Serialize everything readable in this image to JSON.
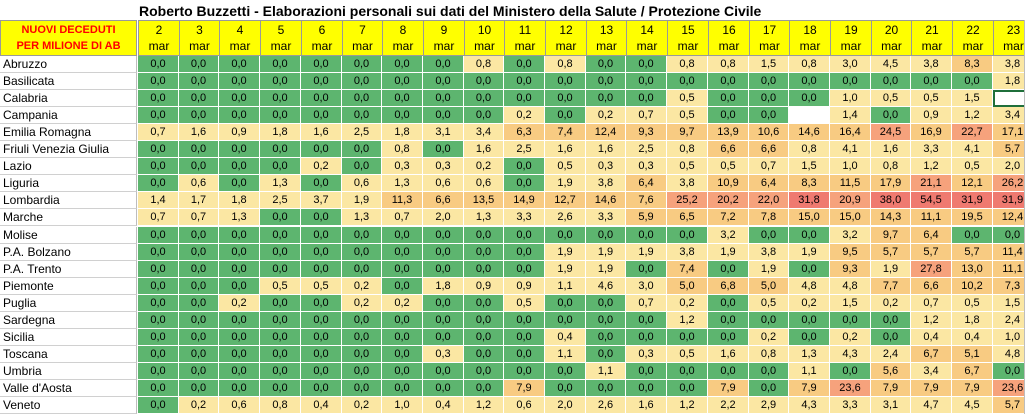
{
  "title": "Roberto Buzzetti - Elaborazioni personali sui dati del Ministero della Salute / Protezione Civile",
  "header_label": [
    "NUOVI DECEDUTI",
    "PER MILIONE DI AB"
  ],
  "month_label": "mar",
  "days": [
    "2",
    "3",
    "4",
    "5",
    "6",
    "7",
    "8",
    "9",
    "10",
    "11",
    "12",
    "13",
    "14",
    "15",
    "16",
    "17",
    "18",
    "19",
    "20",
    "21",
    "22",
    "23"
  ],
  "colors": {
    "header_bg": "#ffff00",
    "header_label_text": "#ff0000",
    "green": "#5db56f",
    "pale": "#fbe7a3",
    "orange": "#f8cb82",
    "salmon": "#f6a27c",
    "red": "#ef7a70",
    "empty": "#ffffff"
  },
  "rows": [
    {
      "region": "Abruzzo",
      "values": [
        "0,0",
        "0,0",
        "0,0",
        "0,0",
        "0,0",
        "0,0",
        "0,0",
        "0,0",
        "0,8",
        "0,0",
        "0,8",
        "0,0",
        "0,0",
        "0,8",
        "0,8",
        "1,5",
        "0,8",
        "3,0",
        "4,5",
        "3,8",
        "8,3",
        "3,8"
      ]
    },
    {
      "region": "Basilicata",
      "values": [
        "0,0",
        "0,0",
        "0,0",
        "0,0",
        "0,0",
        "0,0",
        "0,0",
        "0,0",
        "0,0",
        "0,0",
        "0,0",
        "0,0",
        "0,0",
        "0,0",
        "0,0",
        "0,0",
        "0,0",
        "0,0",
        "0,0",
        "0,0",
        "0,0",
        "1,8"
      ]
    },
    {
      "region": "Calabria",
      "values": [
        "0,0",
        "0,0",
        "0,0",
        "0,0",
        "0,0",
        "0,0",
        "0,0",
        "0,0",
        "0,0",
        "0,0",
        "0,0",
        "0,0",
        "0,0",
        "0,5",
        "0,0",
        "0,0",
        "0,0",
        "1,0",
        "0,5",
        "0,5",
        "1,5",
        ""
      ]
    },
    {
      "region": "Campania",
      "values": [
        "0,0",
        "0,0",
        "0,0",
        "0,0",
        "0,0",
        "0,0",
        "0,0",
        "0,0",
        "0,0",
        "0,2",
        "0,0",
        "0,2",
        "0,7",
        "0,5",
        "0,0",
        "0,0",
        "",
        "1,4",
        "0,0",
        "0,9",
        "1,2",
        "3,4"
      ]
    },
    {
      "region": "Emilia Romagna",
      "values": [
        "0,7",
        "1,6",
        "0,9",
        "1,8",
        "1,6",
        "2,5",
        "1,8",
        "3,1",
        "3,4",
        "6,3",
        "7,4",
        "12,4",
        "9,3",
        "9,7",
        "13,9",
        "10,6",
        "14,6",
        "16,4",
        "24,5",
        "16,9",
        "22,7",
        "17,1"
      ]
    },
    {
      "region": "Friuli Venezia Giulia",
      "values": [
        "0,0",
        "0,0",
        "0,0",
        "0,0",
        "0,0",
        "0,0",
        "0,8",
        "0,0",
        "1,6",
        "2,5",
        "1,6",
        "1,6",
        "2,5",
        "0,8",
        "6,6",
        "6,6",
        "0,8",
        "4,1",
        "1,6",
        "3,3",
        "4,1",
        "5,7"
      ]
    },
    {
      "region": "Lazio",
      "values": [
        "0,0",
        "0,0",
        "0,0",
        "0,0",
        "0,2",
        "0,0",
        "0,3",
        "0,3",
        "0,2",
        "0,0",
        "0,5",
        "0,3",
        "0,3",
        "0,5",
        "0,5",
        "0,7",
        "1,5",
        "1,0",
        "0,8",
        "1,2",
        "0,5",
        "2,0"
      ]
    },
    {
      "region": "Liguria",
      "values": [
        "0,0",
        "0,6",
        "0,0",
        "1,3",
        "0,0",
        "0,6",
        "1,3",
        "0,6",
        "0,6",
        "0,0",
        "1,9",
        "3,8",
        "6,4",
        "3,8",
        "10,9",
        "6,4",
        "8,3",
        "11,5",
        "17,9",
        "21,1",
        "12,1",
        "26,2"
      ]
    },
    {
      "region": "Lombardia",
      "values": [
        "1,4",
        "1,7",
        "1,8",
        "2,5",
        "3,7",
        "1,9",
        "11,3",
        "6,6",
        "13,5",
        "14,9",
        "12,7",
        "14,6",
        "7,6",
        "25,2",
        "20,2",
        "22,0",
        "31,8",
        "20,9",
        "38,0",
        "54,5",
        "31,9",
        "31,9"
      ]
    },
    {
      "region": "Marche",
      "values": [
        "0,7",
        "0,7",
        "1,3",
        "0,0",
        "0,0",
        "1,3",
        "0,7",
        "2,0",
        "1,3",
        "3,3",
        "2,6",
        "3,3",
        "5,9",
        "6,5",
        "7,2",
        "7,8",
        "15,0",
        "15,0",
        "14,3",
        "11,1",
        "19,5",
        "12,4"
      ]
    },
    {
      "region": "Molise",
      "values": [
        "0,0",
        "0,0",
        "0,0",
        "0,0",
        "0,0",
        "0,0",
        "0,0",
        "0,0",
        "0,0",
        "0,0",
        "0,0",
        "0,0",
        "0,0",
        "0,0",
        "3,2",
        "0,0",
        "0,0",
        "3,2",
        "9,7",
        "6,4",
        "0,0",
        "0,0"
      ]
    },
    {
      "region": "P.A. Bolzano",
      "values": [
        "0,0",
        "0,0",
        "0,0",
        "0,0",
        "0,0",
        "0,0",
        "0,0",
        "0,0",
        "0,0",
        "0,0",
        "1,9",
        "1,9",
        "1,9",
        "3,8",
        "1,9",
        "3,8",
        "1,9",
        "9,5",
        "5,7",
        "5,7",
        "5,7",
        "11,4"
      ]
    },
    {
      "region": "P.A. Trento",
      "values": [
        "0,0",
        "0,0",
        "0,0",
        "0,0",
        "0,0",
        "0,0",
        "0,0",
        "0,0",
        "0,0",
        "0,0",
        "1,9",
        "1,9",
        "0,0",
        "7,4",
        "0,0",
        "1,9",
        "0,0",
        "9,3",
        "1,9",
        "27,8",
        "13,0",
        "11,1"
      ]
    },
    {
      "region": "Piemonte",
      "values": [
        "0,0",
        "0,0",
        "0,0",
        "0,5",
        "0,5",
        "0,2",
        "0,0",
        "1,8",
        "0,9",
        "0,9",
        "1,1",
        "4,6",
        "3,0",
        "5,0",
        "6,8",
        "5,0",
        "4,8",
        "4,8",
        "7,7",
        "6,6",
        "10,2",
        "7,3"
      ]
    },
    {
      "region": "Puglia",
      "values": [
        "0,0",
        "0,0",
        "0,2",
        "0,0",
        "0,0",
        "0,2",
        "0,2",
        "0,0",
        "0,0",
        "0,5",
        "0,0",
        "0,0",
        "0,7",
        "0,2",
        "0,0",
        "0,5",
        "0,2",
        "1,5",
        "0,2",
        "0,7",
        "0,5",
        "1,5"
      ]
    },
    {
      "region": "Sardegna",
      "values": [
        "0,0",
        "0,0",
        "0,0",
        "0,0",
        "0,0",
        "0,0",
        "0,0",
        "0,0",
        "0,0",
        "0,0",
        "0,0",
        "0,0",
        "0,0",
        "1,2",
        "0,0",
        "0,0",
        "0,0",
        "0,0",
        "0,0",
        "1,2",
        "1,8",
        "2,4"
      ]
    },
    {
      "region": "Sicilia",
      "values": [
        "0,0",
        "0,0",
        "0,0",
        "0,0",
        "0,0",
        "0,0",
        "0,0",
        "0,0",
        "0,0",
        "0,0",
        "0,4",
        "0,0",
        "0,0",
        "0,0",
        "0,0",
        "0,2",
        "0,0",
        "0,2",
        "0,0",
        "0,4",
        "0,4",
        "1,0"
      ]
    },
    {
      "region": "Toscana",
      "values": [
        "0,0",
        "0,0",
        "0,0",
        "0,0",
        "0,0",
        "0,0",
        "0,0",
        "0,3",
        "0,0",
        "0,0",
        "1,1",
        "0,0",
        "0,3",
        "0,5",
        "1,6",
        "0,8",
        "1,3",
        "4,3",
        "2,4",
        "6,7",
        "5,1",
        "4,8"
      ]
    },
    {
      "region": "Umbria",
      "values": [
        "0,0",
        "0,0",
        "0,0",
        "0,0",
        "0,0",
        "0,0",
        "0,0",
        "0,0",
        "0,0",
        "0,0",
        "0,0",
        "1,1",
        "0,0",
        "0,0",
        "0,0",
        "0,0",
        "1,1",
        "0,0",
        "5,6",
        "3,4",
        "6,7",
        "0,0"
      ]
    },
    {
      "region": "Valle d'Aosta",
      "values": [
        "0,0",
        "0,0",
        "0,0",
        "0,0",
        "0,0",
        "0,0",
        "0,0",
        "0,0",
        "0,0",
        "7,9",
        "0,0",
        "0,0",
        "0,0",
        "0,0",
        "7,9",
        "0,0",
        "7,9",
        "23,6",
        "7,9",
        "7,9",
        "7,9",
        "23,6"
      ]
    },
    {
      "region": "Veneto",
      "values": [
        "0,0",
        "0,2",
        "0,6",
        "0,8",
        "0,4",
        "0,2",
        "1,0",
        "0,4",
        "1,2",
        "0,6",
        "2,0",
        "2,6",
        "1,6",
        "1,2",
        "2,2",
        "2,9",
        "4,3",
        "3,3",
        "3,1",
        "4,7",
        "4,5",
        "5,7"
      ]
    }
  ]
}
